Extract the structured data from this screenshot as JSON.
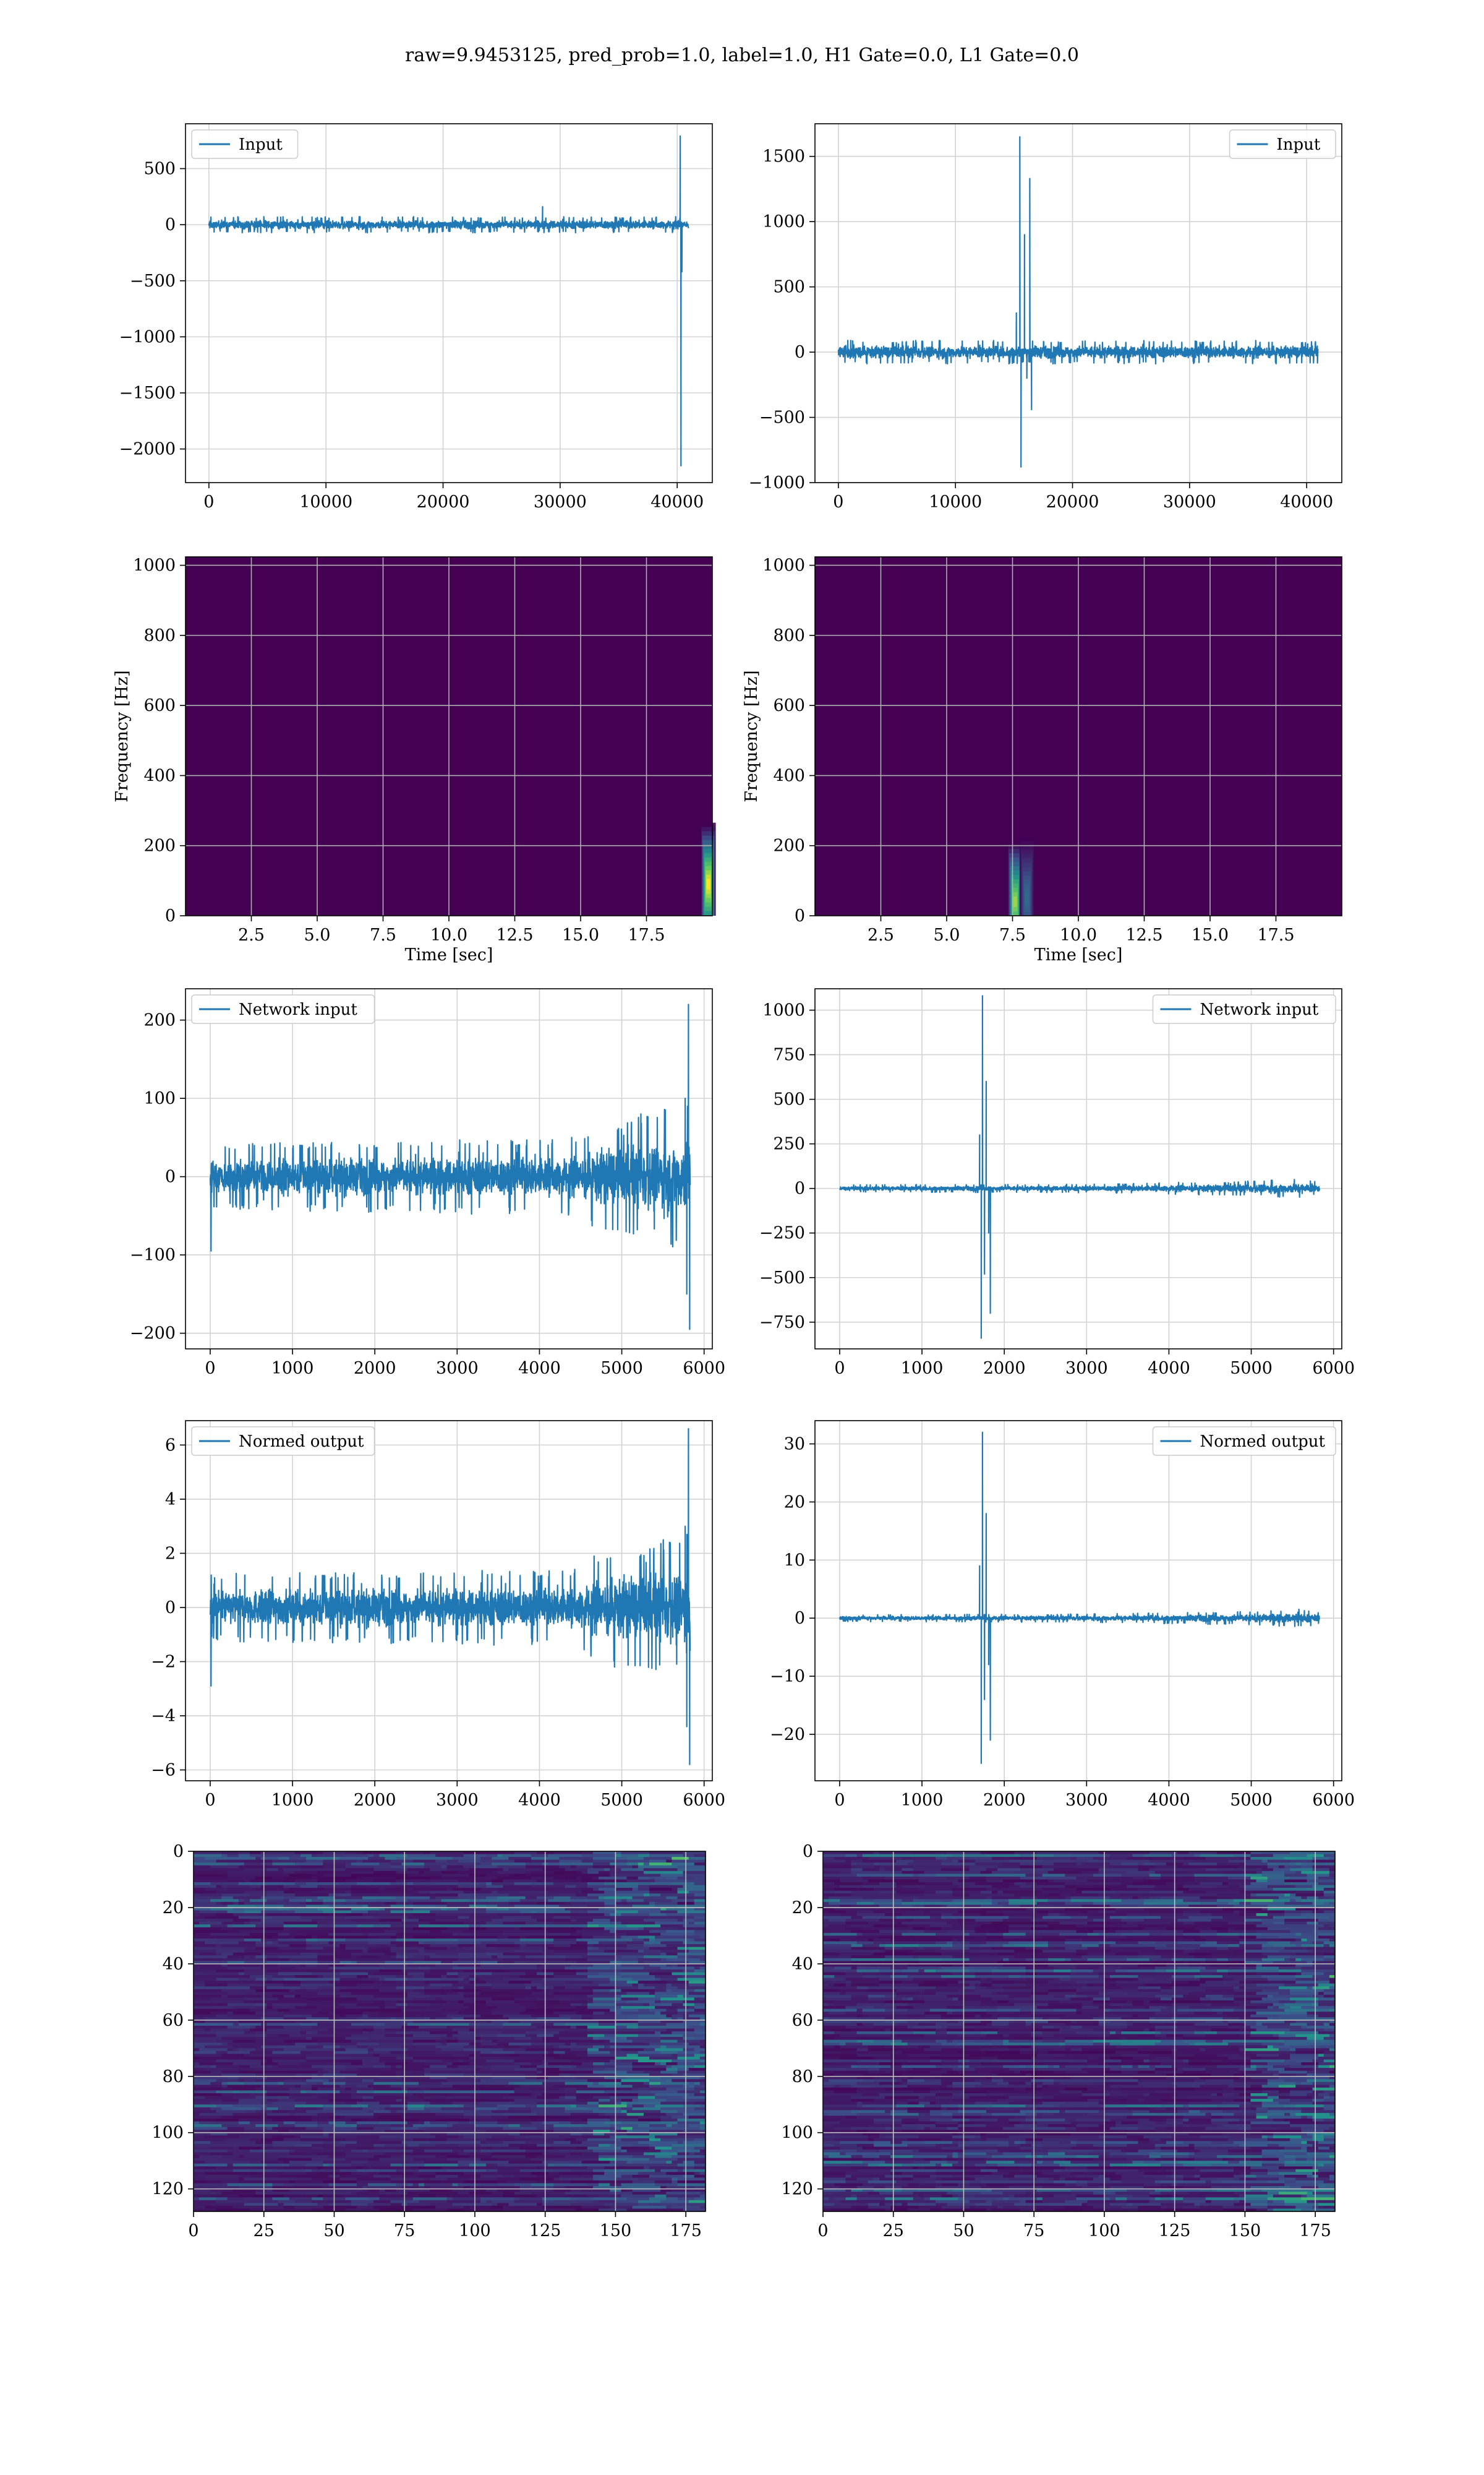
{
  "figure": {
    "title": "raw=9.9453125, pred_prob=1.0, label=1.0, H1 Gate=0.0, L1 Gate=0.0",
    "background": "#ffffff"
  },
  "colors": {
    "line": "#1f77b4",
    "grid": "#d3d3d3",
    "viridis_low": "#440154",
    "viridis_high": "#fde725"
  },
  "chart_data": [
    {
      "id": "input-h1",
      "type": "line",
      "xlim": [
        -2000,
        43000
      ],
      "ylim": [
        -2300,
        900
      ],
      "xticks": [
        0,
        10000,
        20000,
        30000,
        40000
      ],
      "yticks": [
        -2000,
        -1500,
        -1000,
        -500,
        0,
        500
      ],
      "xlabel": "",
      "ylabel": "",
      "legend": "top-left",
      "grid": true,
      "series": [
        {
          "name": "Input",
          "noise": {
            "x_range": [
              0,
              40960
            ],
            "center": 0,
            "envelope": [
              [
                0,
                60
              ],
              [
                40960,
                60
              ]
            ]
          },
          "events": [
            {
              "x": 28500,
              "value": 160
            },
            {
              "x": 40260,
              "value": 790
            },
            {
              "x": 40320,
              "value": -2150
            },
            {
              "x": 40400,
              "value": -420
            }
          ]
        }
      ]
    },
    {
      "id": "input-l1",
      "type": "line",
      "xlim": [
        -2000,
        43000
      ],
      "ylim": [
        -1000,
        1750
      ],
      "xticks": [
        0,
        10000,
        20000,
        30000,
        40000
      ],
      "yticks": [
        -1000,
        -500,
        0,
        500,
        1000,
        1500
      ],
      "xlabel": "",
      "ylabel": "",
      "legend": "top-right",
      "grid": true,
      "series": [
        {
          "name": "Input",
          "noise": {
            "x_range": [
              0,
              40960
            ],
            "center": 0,
            "envelope": [
              [
                0,
                75
              ],
              [
                40960,
                75
              ]
            ]
          },
          "events": [
            {
              "x": 15200,
              "value": 300
            },
            {
              "x": 15500,
              "value": 1650
            },
            {
              "x": 15600,
              "value": -880
            },
            {
              "x": 15900,
              "value": 900
            },
            {
              "x": 16100,
              "value": -200
            },
            {
              "x": 16350,
              "value": 1330
            },
            {
              "x": 16500,
              "value": -440
            }
          ]
        }
      ]
    },
    {
      "id": "spectrogram-h1",
      "type": "heatmap",
      "xlim": [
        0,
        20
      ],
      "ylim": [
        0,
        1024
      ],
      "xticks": [
        2.5,
        5.0,
        7.5,
        10.0,
        12.5,
        15.0,
        17.5
      ],
      "yticks": [
        0,
        200,
        400,
        600,
        800,
        1000
      ],
      "xlabel": "Time [sec]",
      "ylabel": "Frequency [Hz]",
      "grid": true,
      "hotspots": [
        {
          "t": 19.85,
          "f": 90,
          "strength": 1.0
        }
      ]
    },
    {
      "id": "spectrogram-l1",
      "type": "heatmap",
      "xlim": [
        0,
        20
      ],
      "ylim": [
        0,
        1024
      ],
      "xticks": [
        2.5,
        5.0,
        7.5,
        10.0,
        12.5,
        15.0,
        17.5
      ],
      "yticks": [
        0,
        200,
        400,
        600,
        800,
        1000
      ],
      "xlabel": "Time [sec]",
      "ylabel": "Frequency [Hz]",
      "grid": true,
      "hotspots": [
        {
          "t": 7.6,
          "f": 40,
          "strength": 0.85
        },
        {
          "t": 8.05,
          "f": 50,
          "strength": 0.35
        }
      ]
    },
    {
      "id": "network-input-h1",
      "type": "line",
      "xlim": [
        -300,
        6100
      ],
      "ylim": [
        -220,
        240
      ],
      "xticks": [
        0,
        1000,
        2000,
        3000,
        4000,
        5000,
        6000
      ],
      "yticks": [
        -200,
        -100,
        0,
        100,
        200
      ],
      "xlabel": "",
      "ylabel": "",
      "legend": "top-left",
      "grid": true,
      "series": [
        {
          "name": "Network input",
          "noise": {
            "x_range": [
              0,
              5830
            ],
            "center": 0,
            "envelope": [
              [
                0,
                35
              ],
              [
                2000,
                38
              ],
              [
                4400,
                42
              ],
              [
                4800,
                60
              ],
              [
                5500,
                72
              ],
              [
                5830,
                80
              ]
            ]
          },
          "events": [
            {
              "x": 10,
              "value": -95
            },
            {
              "x": 5770,
              "value": 100
            },
            {
              "x": 5790,
              "value": -150
            },
            {
              "x": 5810,
              "value": 220
            },
            {
              "x": 5825,
              "value": -195
            }
          ]
        }
      ]
    },
    {
      "id": "network-input-l1",
      "type": "line",
      "xlim": [
        -300,
        6100
      ],
      "ylim": [
        -900,
        1120
      ],
      "xticks": [
        0,
        1000,
        2000,
        3000,
        4000,
        5000,
        6000
      ],
      "yticks": [
        -750,
        -500,
        -250,
        0,
        250,
        500,
        750,
        1000
      ],
      "xlabel": "",
      "ylabel": "",
      "legend": "top-right",
      "grid": true,
      "series": [
        {
          "name": "Network input",
          "noise": {
            "x_range": [
              0,
              5830
            ],
            "center": 0,
            "envelope": [
              [
                0,
                18
              ],
              [
                3000,
                20
              ],
              [
                5000,
                35
              ],
              [
                5600,
                45
              ],
              [
                5830,
                30
              ]
            ]
          },
          "events": [
            {
              "x": 1700,
              "value": 300
            },
            {
              "x": 1720,
              "value": -840
            },
            {
              "x": 1735,
              "value": 1080
            },
            {
              "x": 1760,
              "value": -480
            },
            {
              "x": 1780,
              "value": 600
            },
            {
              "x": 1810,
              "value": -250
            },
            {
              "x": 1830,
              "value": -700
            }
          ]
        }
      ]
    },
    {
      "id": "normed-output-h1",
      "type": "line",
      "xlim": [
        -300,
        6100
      ],
      "ylim": [
        -6.4,
        6.9
      ],
      "xticks": [
        0,
        1000,
        2000,
        3000,
        4000,
        5000,
        6000
      ],
      "yticks": [
        -6,
        -4,
        -2,
        0,
        2,
        4,
        6
      ],
      "xlabel": "",
      "ylabel": "",
      "legend": "top-left",
      "grid": true,
      "series": [
        {
          "name": "Normed output",
          "noise": {
            "x_range": [
              0,
              5830
            ],
            "center": 0,
            "envelope": [
              [
                0,
                1.05
              ],
              [
                2000,
                1.1
              ],
              [
                4400,
                1.2
              ],
              [
                4800,
                1.8
              ],
              [
                5500,
                2.1
              ],
              [
                5830,
                2.3
              ]
            ]
          },
          "events": [
            {
              "x": 10,
              "value": -2.9
            },
            {
              "x": 5770,
              "value": 3.0
            },
            {
              "x": 5790,
              "value": -4.4
            },
            {
              "x": 5810,
              "value": 6.6
            },
            {
              "x": 5825,
              "value": -5.8
            }
          ]
        }
      ]
    },
    {
      "id": "normed-output-l1",
      "type": "line",
      "xlim": [
        -300,
        6100
      ],
      "ylim": [
        -28,
        34
      ],
      "xticks": [
        0,
        1000,
        2000,
        3000,
        4000,
        5000,
        6000
      ],
      "yticks": [
        -20,
        -10,
        0,
        10,
        20,
        30
      ],
      "xlabel": "",
      "ylabel": "",
      "legend": "top-right",
      "grid": true,
      "series": [
        {
          "name": "Normed output",
          "noise": {
            "x_range": [
              0,
              5830
            ],
            "center": 0,
            "envelope": [
              [
                0,
                0.5
              ],
              [
                3000,
                0.6
              ],
              [
                5000,
                1.0
              ],
              [
                5600,
                1.3
              ],
              [
                5830,
                0.9
              ]
            ]
          },
          "events": [
            {
              "x": 1700,
              "value": 9
            },
            {
              "x": 1720,
              "value": -25
            },
            {
              "x": 1735,
              "value": 32
            },
            {
              "x": 1760,
              "value": -14
            },
            {
              "x": 1780,
              "value": 18
            },
            {
              "x": 1810,
              "value": -8
            },
            {
              "x": 1830,
              "value": -21
            }
          ]
        }
      ]
    },
    {
      "id": "feature-map-h1",
      "type": "heatmap",
      "xlim": [
        0,
        182
      ],
      "ylim": [
        128,
        0
      ],
      "xticks": [
        0,
        25,
        50,
        75,
        100,
        125,
        150,
        175
      ],
      "yticks": [
        0,
        20,
        40,
        60,
        80,
        100,
        120
      ],
      "xlabel": "",
      "ylabel": "",
      "grid": true,
      "hot_region": {
        "x_from": 140,
        "x_to": 182,
        "intensity": 0.8
      }
    },
    {
      "id": "feature-map-l1",
      "type": "heatmap",
      "xlim": [
        0,
        182
      ],
      "ylim": [
        128,
        0
      ],
      "xticks": [
        0,
        25,
        50,
        75,
        100,
        125,
        150,
        175
      ],
      "yticks": [
        0,
        20,
        40,
        60,
        80,
        100,
        120
      ],
      "xlabel": "",
      "ylabel": "",
      "grid": true,
      "hot_region": {
        "x_from": 150,
        "x_to": 182,
        "intensity": 0.85
      }
    }
  ]
}
